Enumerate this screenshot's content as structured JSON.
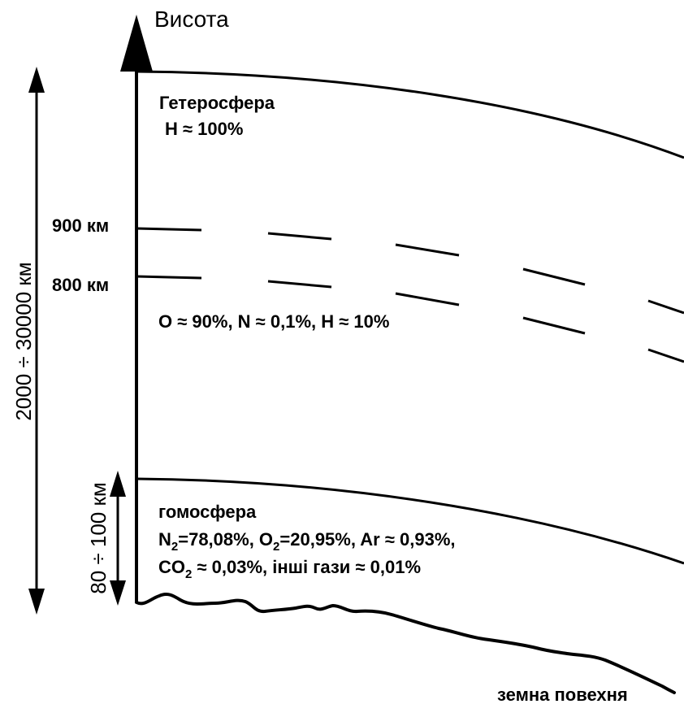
{
  "axis": {
    "label": "Висота"
  },
  "outer_range": {
    "label": "2000 ÷ 30000 км"
  },
  "inner_range": {
    "label": "80 ÷ 100 км"
  },
  "heterosphere": {
    "title": "Гетеросфера",
    "composition": "H ≈ 100%"
  },
  "levels": {
    "upper": "900 км",
    "lower": "800 км"
  },
  "middle_layer": {
    "composition": "O ≈ 90%, N ≈ 0,1%, H ≈ 10%"
  },
  "homosphere": {
    "title": "гомосфера",
    "line1": {
      "n": "N",
      "n_sub": "2",
      "a": "=78,08%, O",
      "a_sub": "2",
      "b": "=20,95%, Ar ≈ 0,93%,"
    },
    "line2": {
      "c": "CO",
      "c_sub": "2",
      "d": " ≈ 0,03%, інші гази ≈ 0,01%"
    }
  },
  "surface": {
    "label": "земна повехня"
  }
}
